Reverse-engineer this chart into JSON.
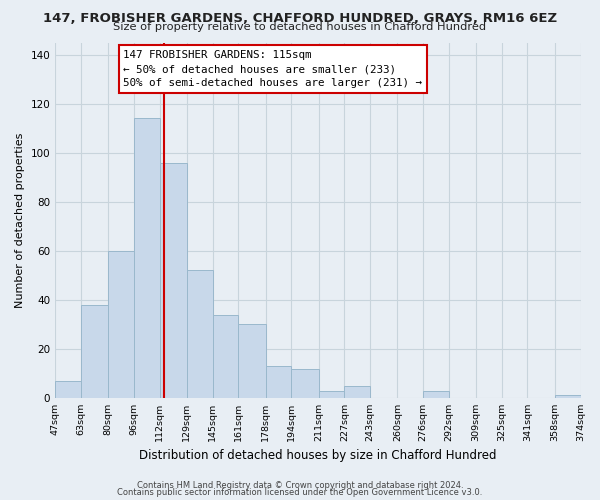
{
  "title": "147, FROBISHER GARDENS, CHAFFORD HUNDRED, GRAYS, RM16 6EZ",
  "subtitle": "Size of property relative to detached houses in Chafford Hundred",
  "xlabel": "Distribution of detached houses by size in Chafford Hundred",
  "ylabel": "Number of detached properties",
  "bar_edges": [
    47,
    63,
    80,
    96,
    112,
    129,
    145,
    161,
    178,
    194,
    211,
    227,
    243,
    260,
    276,
    292,
    309,
    325,
    341,
    358,
    374
  ],
  "bar_heights": [
    7,
    38,
    60,
    114,
    96,
    52,
    34,
    30,
    13,
    12,
    3,
    5,
    0,
    0,
    3,
    0,
    0,
    0,
    0,
    1
  ],
  "bar_color": "#c8d8ea",
  "bar_edge_color": "#9ab8cc",
  "vline_x": 115,
  "vline_color": "#cc0000",
  "annotation_title": "147 FROBISHER GARDENS: 115sqm",
  "annotation_line1": "← 50% of detached houses are smaller (233)",
  "annotation_line2": "50% of semi-detached houses are larger (231) →",
  "ylim": [
    0,
    145
  ],
  "yticks": [
    0,
    20,
    40,
    60,
    80,
    100,
    120,
    140
  ],
  "footer1": "Contains HM Land Registry data © Crown copyright and database right 2024.",
  "footer2": "Contains public sector information licensed under the Open Government Licence v3.0.",
  "tick_labels": [
    "47sqm",
    "63sqm",
    "80sqm",
    "96sqm",
    "112sqm",
    "129sqm",
    "145sqm",
    "161sqm",
    "178sqm",
    "194sqm",
    "211sqm",
    "227sqm",
    "243sqm",
    "260sqm",
    "276sqm",
    "292sqm",
    "309sqm",
    "325sqm",
    "341sqm",
    "358sqm",
    "374sqm"
  ],
  "background_color": "#e8eef4",
  "plot_bg_color": "#e8eef4",
  "grid_color": "#c8d4dc"
}
